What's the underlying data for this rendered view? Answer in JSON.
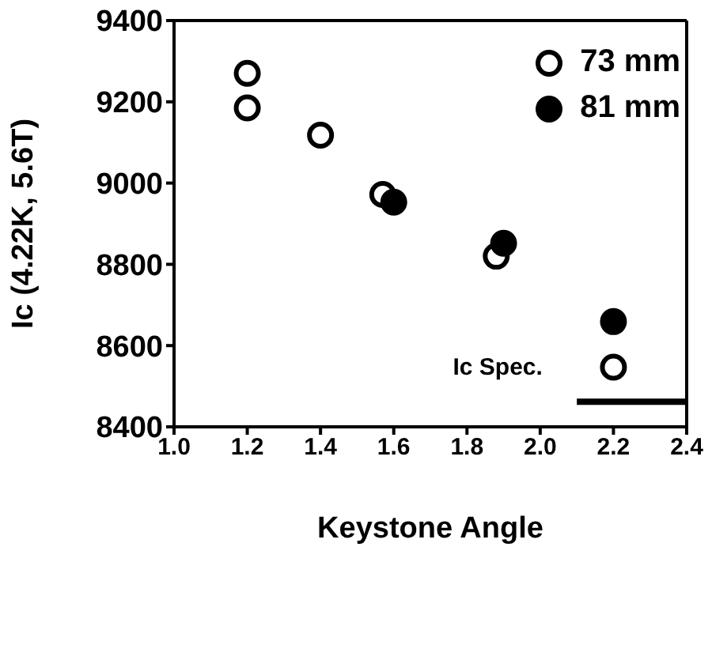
{
  "chart_data": {
    "type": "scatter",
    "xlabel": "Keystone Angle",
    "ylabel": "Ic (4.22K, 5.6T)",
    "xlim": [
      1.0,
      2.4
    ],
    "xticks": [
      "1.0",
      1.2,
      1.4,
      1.6,
      1.8,
      "2.0",
      2.2,
      2.4
    ],
    "ylim": [
      8400,
      9400
    ],
    "yticks": [
      8400,
      8600,
      8800,
      9000,
      9200,
      9400
    ],
    "grid": false,
    "legend": "top right",
    "series": [
      {
        "name": "73 mm",
        "color": "#000000",
        "marker": "circle",
        "x": [
          1.2,
          1.2,
          1.4,
          1.57,
          1.88,
          2.2
        ],
        "values": [
          9270,
          9185,
          9118,
          8972,
          8820,
          8547
        ]
      },
      {
        "name": "81 mm",
        "color": "#000000",
        "marker": "circle",
        "x": [
          1.6,
          1.9,
          2.2
        ],
        "values": [
          8953,
          8852,
          8659
        ]
      },
      {
        "type": "line",
        "color": "#000000",
        "x": [
          2.1,
          2.4
        ],
        "values": [
          8462,
          8462
        ]
      }
    ],
    "annotations": [
      {
        "text": "Ic Spec.",
        "x": 2.1,
        "y": 8462
      }
    ]
  }
}
